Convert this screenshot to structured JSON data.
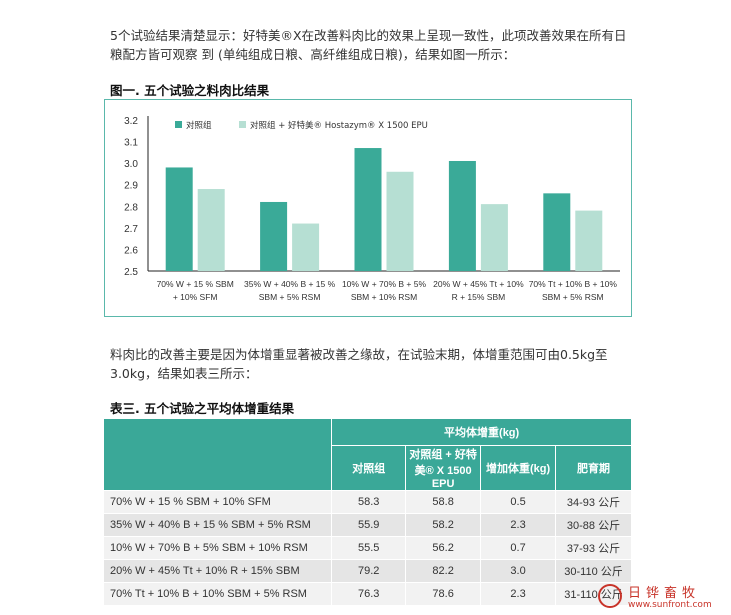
{
  "intro_text": "5个试验结果清楚显示：好特美®X在改善料肉比的效果上呈现一致性，此项改善效果在所有日粮配方皆可观察 到 (单纯组成日粮、高纤维组成日粮)，结果如图一所示：",
  "figure_title": "图一. 五个试验之料肉比结果",
  "chart_data": {
    "type": "bar",
    "title": "",
    "xlabel": "",
    "ylabel": "",
    "ylim": [
      2.5,
      3.2
    ],
    "yticks": [
      "2.5",
      "2.6",
      "2.7",
      "2.8",
      "2.9",
      "3.0",
      "3.1",
      "3.2"
    ],
    "legend_position": "top",
    "categories": [
      [
        "70% W + 15 % SBM",
        "+ 10% SFM"
      ],
      [
        "35% W + 40% B + 15 %",
        "SBM + 5% RSM"
      ],
      [
        "10% W + 70% B + 5%",
        "SBM + 10% RSM"
      ],
      [
        "20% W + 45% Tt + 10%",
        "R + 15% SBM"
      ],
      [
        "70% Tt + 10% B + 10%",
        "SBM + 5% RSM"
      ]
    ],
    "series": [
      {
        "name": "对照组",
        "color": "#3aaa98",
        "values": [
          2.98,
          2.82,
          3.07,
          3.01,
          2.86
        ]
      },
      {
        "name": "对照组 + 好特美® Hostazym® X 1500 EPU",
        "color": "#b6dfd3",
        "values": [
          2.88,
          2.72,
          2.96,
          2.81,
          2.78
        ]
      }
    ]
  },
  "body_text": "料肉比的改善主要是因为体增重显著被改善之缘故，在试验末期，体增重范围可由0.5kg至3.0kg，结果如表三所示：",
  "table_title": "表三. 五个试验之平均体增重结果",
  "table": {
    "group_header": "平均体增重(kg)",
    "columns": [
      "对照组",
      "对照组 + 好特美® X 1500 EPU",
      "增加体重(kg)",
      "肥育期"
    ],
    "rows": [
      [
        "70% W + 15 % SBM + 10% SFM",
        "58.3",
        "58.8",
        "0.5",
        "34-93 公斤"
      ],
      [
        "35% W + 40% B + 15 % SBM + 5% RSM",
        "55.9",
        "58.2",
        "2.3",
        "30-88 公斤"
      ],
      [
        "10% W + 70% B + 5% SBM + 10% RSM",
        "55.5",
        "56.2",
        "0.7",
        "37-93 公斤"
      ],
      [
        "20% W + 45% Tt + 10% R + 15% SBM",
        "79.2",
        "82.2",
        "3.0",
        "30-110 公斤"
      ],
      [
        "70% Tt + 10% B + 10% SBM + 5% RSM",
        "76.3",
        "78.6",
        "2.3",
        "31-110 公斤"
      ]
    ]
  },
  "watermark": {
    "name": "日铧畜牧",
    "url": "www.sunfront.com"
  }
}
